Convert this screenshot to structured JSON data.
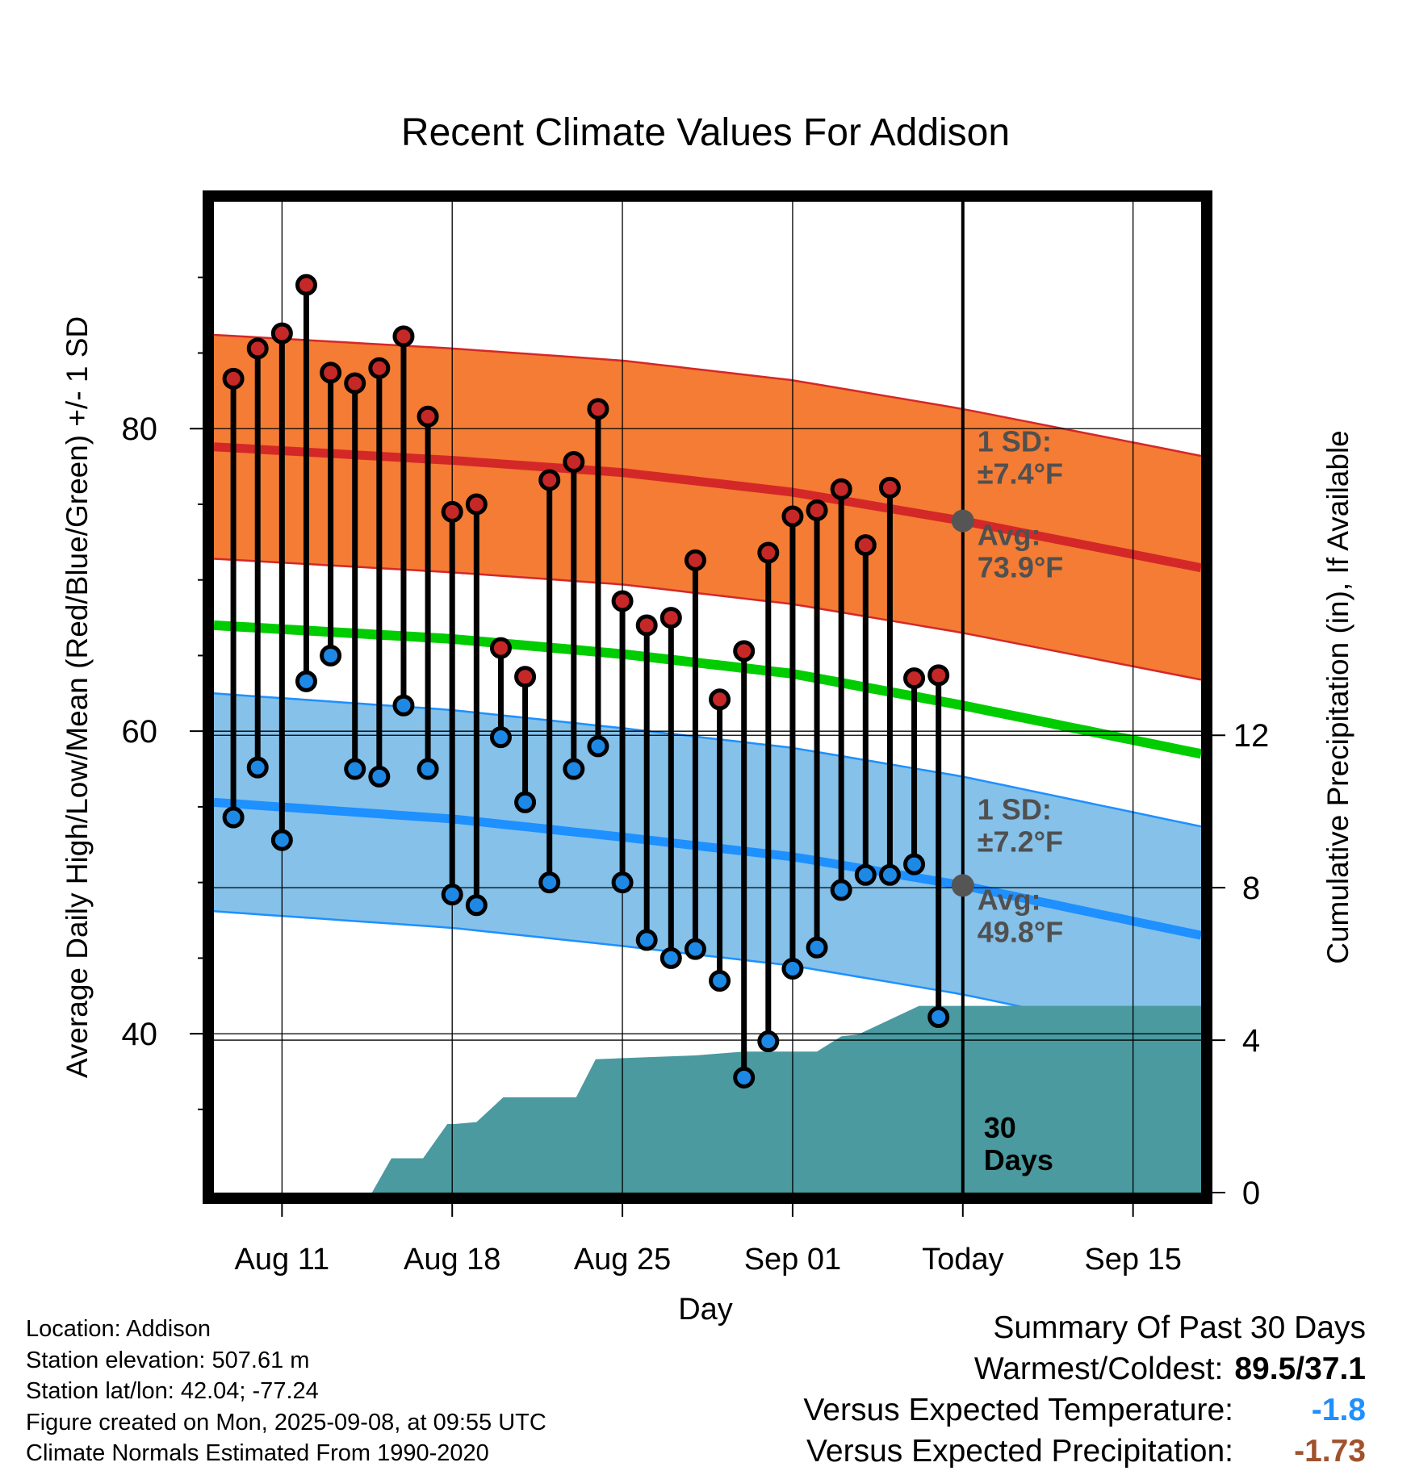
{
  "chart_data": {
    "type": "line",
    "title": "Recent Climate Values For Addison",
    "xlabel": "Day",
    "ylabel": "Average Daily High/Low/Mean (Red/Blue/Green) +/- 1 SD",
    "y2label": "Cumulative Precipitation (in), If Available",
    "ylim": [
      29.5,
      95
    ],
    "yticks": [
      40,
      60,
      80
    ],
    "y2lim": [
      0,
      26
    ],
    "y2ticks": [
      0,
      4,
      8,
      12
    ],
    "x_tick_labels": [
      "Aug 11",
      "Aug 18",
      "Aug 25",
      "Sep 01",
      "Today",
      "Sep 15"
    ],
    "x_tick_days": [
      0,
      7,
      14,
      21,
      28,
      35
    ],
    "x_range_days": [
      -2.8,
      37.8
    ],
    "grid": true,
    "days": [
      -2,
      -1,
      0,
      1,
      2,
      3,
      4,
      5,
      6,
      7,
      8,
      9,
      10,
      11,
      12,
      13,
      14,
      15,
      16,
      17,
      18,
      19,
      20,
      21,
      22,
      23,
      24,
      25,
      26,
      27
    ],
    "daily_highs": [
      83.3,
      85.3,
      86.3,
      89.5,
      83.7,
      83.0,
      84.0,
      86.1,
      80.8,
      74.5,
      75.0,
      65.5,
      63.6,
      76.6,
      77.8,
      81.3,
      68.6,
      67.0,
      67.5,
      71.3,
      62.1,
      65.3,
      71.8,
      74.2,
      74.6,
      76.0,
      72.3,
      76.1,
      63.5,
      63.7
    ],
    "daily_lows": [
      54.3,
      57.6,
      52.8,
      63.3,
      65.0,
      57.5,
      57.0,
      61.7,
      57.5,
      49.2,
      48.5,
      59.6,
      55.3,
      50.0,
      57.5,
      59.0,
      50.0,
      46.2,
      45.0,
      45.6,
      43.5,
      37.1,
      39.5,
      44.3,
      45.7,
      49.5,
      50.5,
      50.5,
      51.2,
      41.1
    ],
    "normal_high": {
      "days": [
        -2.8,
        7,
        14,
        21,
        28,
        37.8
      ],
      "values": [
        78.8,
        77.9,
        77.1,
        75.8,
        73.9,
        70.8
      ]
    },
    "normal_high_sd": 7.4,
    "normal_low": {
      "days": [
        -2.8,
        7,
        14,
        21,
        28,
        37.8
      ],
      "values": [
        55.3,
        54.2,
        53.0,
        51.7,
        49.8,
        46.5
      ]
    },
    "normal_low_sd": 7.2,
    "normal_mean": {
      "days": [
        -2.8,
        7,
        14,
        21,
        28,
        37.8
      ],
      "values": [
        67.0,
        66.1,
        65.1,
        63.8,
        61.7,
        58.5
      ]
    },
    "precip_cumulative": {
      "days": [
        -2.8,
        3.7,
        4.5,
        5.8,
        6.8,
        7.1,
        8,
        9.1,
        9.8,
        12.1,
        12.9,
        15,
        17,
        18,
        19,
        22,
        23,
        23.7,
        26.2,
        37.8
      ],
      "values": [
        0,
        0,
        0.9,
        0.9,
        1.8,
        1.8,
        1.85,
        2.5,
        2.5,
        2.5,
        3.5,
        3.55,
        3.6,
        3.65,
        3.7,
        3.7,
        4.1,
        4.15,
        4.9,
        4.9
      ]
    },
    "today_day": 28,
    "annotations": {
      "high_sd": [
        "1 SD:",
        "±7.4°F"
      ],
      "high_avg": [
        "Avg:",
        "73.9°F"
      ],
      "low_sd": [
        "1 SD:",
        "±7.2°F"
      ],
      "low_avg": [
        "Avg:",
        "49.8°F"
      ],
      "precip_days": [
        "30",
        "Days"
      ]
    }
  },
  "colors": {
    "high_band": "#f47c34",
    "high_line": "#d42828",
    "low_band": "#85c1e9",
    "low_line": "#1e90ff",
    "mean_line": "#00cc00",
    "precip": "#4a9aa0",
    "high_marker": "#c62828",
    "low_marker": "#1e88e5",
    "annotation": "#505050"
  },
  "footer": {
    "location": "Location: Addison",
    "elevation": "Station elevation: 507.61 m",
    "latlon": "Station lat/lon: 42.04; -77.24",
    "created": "Figure created on Mon, 2025-09-08, at 09:55 UTC",
    "normals": "Climate Normals Estimated From 1990-2020"
  },
  "summary": {
    "title": "Summary Of Past 30 Days",
    "warm_cold_label": "Warmest/Coldest:",
    "warm_cold_value": "89.5/37.1",
    "temp_label": "Versus Expected Temperature:",
    "temp_value": "-1.8",
    "precip_label": "Versus Expected Precipitation:",
    "precip_value": "-1.73"
  }
}
